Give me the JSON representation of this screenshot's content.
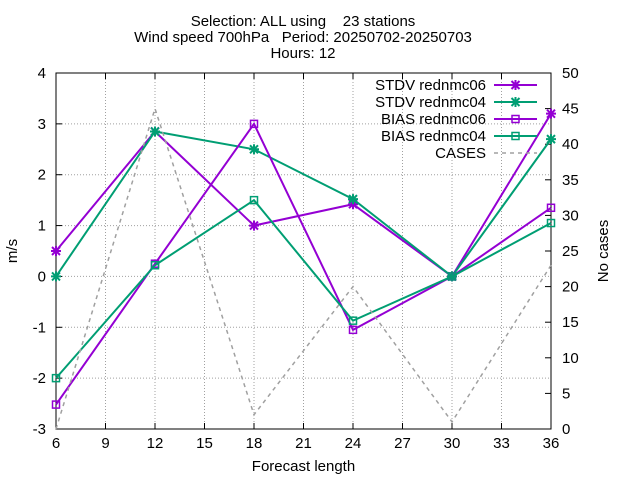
{
  "chart_data": {
    "type": "line",
    "title_lines": [
      "Selection: ALL using    23 stations",
      "Wind speed 700hPa   Period: 20250702-20250703",
      "Hours: 12"
    ],
    "xlabel": "Forecast length",
    "ylabel": "m/s",
    "y2label": "No cases",
    "xlim": [
      6,
      36
    ],
    "ylim": [
      -3,
      4
    ],
    "y2lim": [
      0,
      50
    ],
    "x_ticks": [
      6,
      9,
      12,
      15,
      18,
      21,
      24,
      27,
      30,
      33,
      36
    ],
    "y_ticks": [
      -3,
      -2,
      -1,
      0,
      1,
      2,
      3,
      4
    ],
    "y2_ticks": [
      0,
      5,
      10,
      15,
      20,
      25,
      30,
      35,
      40,
      45,
      50
    ],
    "grid": true,
    "legend_position": "top-right",
    "x": [
      6,
      12,
      18,
      24,
      30,
      36
    ],
    "series": [
      {
        "name": "STDV rednmc06",
        "axis": "y",
        "color": "#9400d3",
        "marker": "star",
        "dash": false,
        "values": [
          0.5,
          2.85,
          1.0,
          1.42,
          0.0,
          3.2
        ]
      },
      {
        "name": "STDV rednmc04",
        "axis": "y",
        "color": "#009e73",
        "marker": "star",
        "dash": false,
        "values": [
          0.0,
          2.85,
          2.5,
          1.52,
          0.0,
          2.7
        ]
      },
      {
        "name": "BIAS rednmc06",
        "axis": "y",
        "color": "#9400d3",
        "marker": "square",
        "dash": false,
        "values": [
          -2.52,
          0.25,
          3.0,
          -1.05,
          0.0,
          1.35
        ]
      },
      {
        "name": "BIAS rednmc04",
        "axis": "y",
        "color": "#009e73",
        "marker": "square",
        "dash": false,
        "values": [
          -2.0,
          0.22,
          1.5,
          -0.87,
          0.0,
          1.05
        ]
      },
      {
        "name": "CASES",
        "axis": "y2",
        "color": "#a0a0a0",
        "marker": "none",
        "dash": true,
        "values": [
          0,
          45,
          2,
          20,
          1,
          23
        ]
      }
    ]
  }
}
